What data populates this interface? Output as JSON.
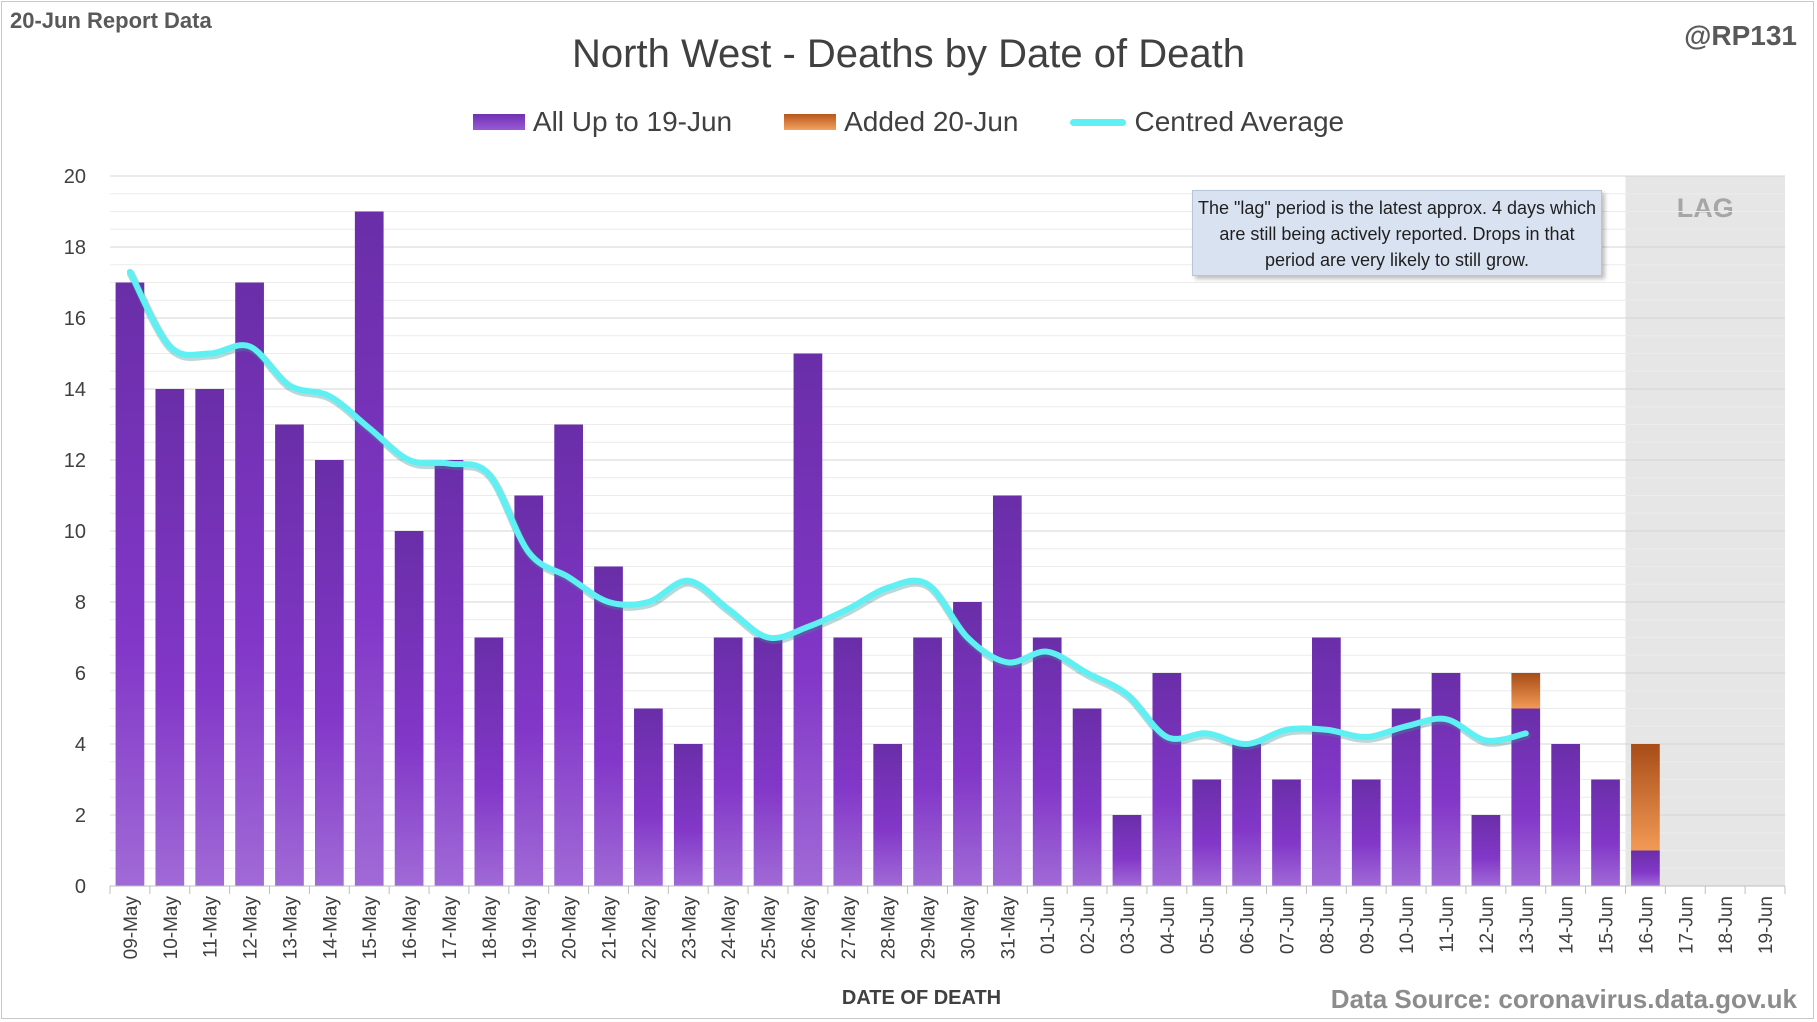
{
  "header": {
    "report_label": "20-Jun Report Data",
    "handle": "@RP131"
  },
  "footer": {
    "source": "Data Source: coronavirus.data.gov.uk"
  },
  "annotation": {
    "note": "The \"lag\" period is the latest approx. 4 days which are still being actively reported. Drops in that period are very likely to still grow.",
    "lag_label": "LAG"
  },
  "legend": {
    "all": "All Up to 19-Jun",
    "added": "Added 20-Jun",
    "avg": "Centred Average"
  },
  "colors": {
    "purple_top": "#6f31b1",
    "purple_bottom": "#9a5ad8",
    "orange_top": "#b8561c",
    "orange_bottom": "#f4a260",
    "average": "#5ff0f4",
    "lag_shade": "#e6e6e6"
  },
  "chart_data": {
    "type": "bar",
    "title": "North West - Deaths by Date of Death",
    "xlabel": "DATE OF DEATH",
    "ylabel": "",
    "ylim": [
      0,
      20
    ],
    "yticks": [
      0,
      2,
      4,
      6,
      8,
      10,
      12,
      14,
      16,
      18,
      20
    ],
    "grid": true,
    "legend_position": "top",
    "lag_start_category": "16-Jun",
    "categories": [
      "09-May",
      "10-May",
      "11-May",
      "12-May",
      "13-May",
      "14-May",
      "15-May",
      "16-May",
      "17-May",
      "18-May",
      "19-May",
      "20-May",
      "21-May",
      "22-May",
      "23-May",
      "24-May",
      "25-May",
      "26-May",
      "27-May",
      "28-May",
      "29-May",
      "30-May",
      "31-May",
      "01-Jun",
      "02-Jun",
      "03-Jun",
      "04-Jun",
      "05-Jun",
      "06-Jun",
      "07-Jun",
      "08-Jun",
      "09-Jun",
      "10-Jun",
      "11-Jun",
      "12-Jun",
      "13-Jun",
      "14-Jun",
      "15-Jun",
      "16-Jun",
      "17-Jun",
      "18-Jun",
      "19-Jun"
    ],
    "series": [
      {
        "name": "All Up to 19-Jun",
        "type": "bar",
        "values": [
          17,
          14,
          14,
          17,
          13,
          12,
          19,
          10,
          12,
          7,
          11,
          13,
          9,
          5,
          4,
          7,
          7,
          15,
          7,
          4,
          7,
          8,
          11,
          7,
          5,
          2,
          6,
          3,
          4,
          3,
          7,
          3,
          5,
          6,
          2,
          5,
          4,
          3,
          1,
          0,
          0,
          0
        ]
      },
      {
        "name": "Added 20-Jun",
        "type": "bar",
        "values": [
          0,
          0,
          0,
          0,
          0,
          0,
          0,
          0,
          0,
          0,
          0,
          0,
          0,
          0,
          0,
          0,
          0,
          0,
          0,
          0,
          0,
          0,
          0,
          0,
          0,
          0,
          0,
          0,
          0,
          0,
          0,
          0,
          0,
          0,
          0,
          1,
          0,
          0,
          3,
          0,
          0,
          0
        ]
      },
      {
        "name": "Centred Average",
        "type": "line",
        "values": [
          17.3,
          15.2,
          15.0,
          15.2,
          14.1,
          13.8,
          12.9,
          12.0,
          11.9,
          11.6,
          9.4,
          8.7,
          8.0,
          8.0,
          8.6,
          7.8,
          7.0,
          7.3,
          7.8,
          8.4,
          8.5,
          7.0,
          6.3,
          6.6,
          6.0,
          5.4,
          4.2,
          4.3,
          4.0,
          4.4,
          4.4,
          4.2,
          4.5,
          4.7,
          4.1,
          4.3,
          null,
          null,
          null,
          null,
          null,
          null
        ]
      }
    ]
  }
}
